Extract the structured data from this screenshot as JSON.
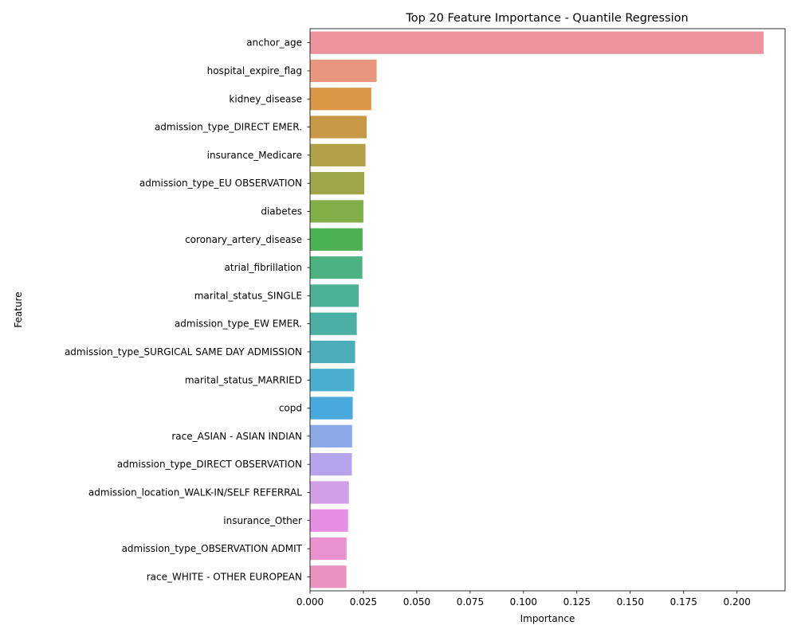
{
  "chart_data": {
    "type": "bar",
    "orientation": "horizontal",
    "title": "Top 20 Feature Importance - Quantile Regression",
    "xlabel": "Importance",
    "ylabel": "Feature",
    "xlim": [
      0,
      0.2225
    ],
    "xticks": [
      0.0,
      0.025,
      0.05,
      0.075,
      0.1,
      0.125,
      0.15,
      0.175,
      0.2
    ],
    "xtick_labels": [
      "0.000",
      "0.025",
      "0.050",
      "0.075",
      "0.100",
      "0.125",
      "0.150",
      "0.175",
      "0.200"
    ],
    "grid": false,
    "categories": [
      "anchor_age",
      "hospital_expire_flag",
      "kidney_disease",
      "admission_type_DIRECT EMER.",
      "insurance_Medicare",
      "admission_type_EU OBSERVATION",
      "diabetes",
      "coronary_artery_disease",
      "atrial_fibrillation",
      "marital_status_SINGLE",
      "admission_type_EW EMER.",
      "admission_type_SURGICAL SAME DAY ADMISSION",
      "marital_status_MARRIED",
      "copd",
      "race_ASIAN - ASIAN INDIAN",
      "admission_type_DIRECT OBSERVATION",
      "admission_location_WALK-IN/SELF REFERRAL",
      "insurance_Other",
      "admission_type_OBSERVATION ADMIT",
      "race_WHITE - OTHER EUROPEAN"
    ],
    "values": [
      0.2125,
      0.0312,
      0.0287,
      0.0265,
      0.026,
      0.0254,
      0.025,
      0.0246,
      0.0245,
      0.0228,
      0.0219,
      0.0211,
      0.0207,
      0.02,
      0.0197,
      0.0196,
      0.0182,
      0.0178,
      0.0171,
      0.017
    ],
    "colors": [
      "#ec939e",
      "#e7977e",
      "#dc9744",
      "#c79945",
      "#b3a14a",
      "#9ea649",
      "#82ae4a",
      "#4cb152",
      "#4cb183",
      "#4bb298",
      "#4ab0a5",
      "#4badb8",
      "#4aafce",
      "#4aa9dc",
      "#8da9e7",
      "#b6a5ec",
      "#d29ee6",
      "#e78ee2",
      "#e992cf",
      "#ea92bd"
    ]
  }
}
